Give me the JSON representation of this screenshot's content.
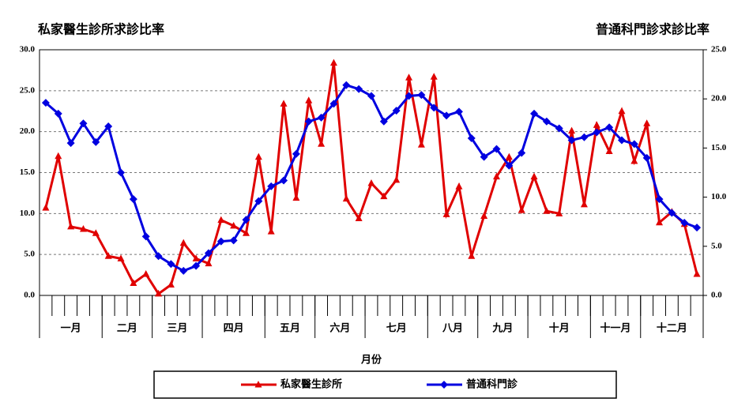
{
  "chart_data": {
    "type": "line",
    "title": "私家醫生診所求診比率",
    "title_right": "普通科門診求診比率",
    "x_label": "月份",
    "groups": [
      {
        "label": "一月",
        "span": 5
      },
      {
        "label": "二月",
        "span": 4
      },
      {
        "label": "三月",
        "span": 4
      },
      {
        "label": "四月",
        "span": 5
      },
      {
        "label": "五月",
        "span": 4
      },
      {
        "label": "六月",
        "span": 4
      },
      {
        "label": "七月",
        "span": 5
      },
      {
        "label": "八月",
        "span": 4
      },
      {
        "label": "九月",
        "span": 4
      },
      {
        "label": "十月",
        "span": 5
      },
      {
        "label": "十一月",
        "span": 4
      },
      {
        "label": "十二月",
        "span": 5
      }
    ],
    "ylim": [
      0,
      30
    ],
    "yticks": [
      {
        "value": 0,
        "label": "0.0"
      },
      {
        "value": 5,
        "label": "5.0"
      },
      {
        "value": 10,
        "label": "10.0"
      },
      {
        "value": 15,
        "label": "15.0"
      },
      {
        "value": 20,
        "label": "20.0"
      },
      {
        "value": 25,
        "label": "25.0"
      },
      {
        "value": 30,
        "label": "30.0"
      }
    ],
    "y2lim": [
      0,
      25
    ],
    "y2ticks": [
      {
        "value": 0,
        "label": "0.0"
      },
      {
        "value": 5,
        "label": "5.0"
      },
      {
        "value": 10,
        "label": "10.0"
      },
      {
        "value": 15,
        "label": "15.0"
      },
      {
        "value": 20,
        "label": "20.0"
      },
      {
        "value": 25,
        "label": "25.0"
      }
    ],
    "grid": true,
    "series": [
      {
        "name": "私家醫生診所",
        "color": "#e00000",
        "marker": "triangle",
        "axis": "y",
        "values": [
          10.7,
          17.0,
          8.4,
          8.1,
          7.6,
          4.8,
          4.5,
          1.5,
          2.6,
          0.2,
          1.3,
          6.4,
          4.5,
          3.9,
          9.2,
          8.5,
          7.6,
          16.9,
          7.8,
          23.4,
          11.9,
          23.8,
          18.5,
          28.4,
          11.8,
          9.4,
          13.7,
          12.1,
          14.1,
          26.6,
          18.4,
          26.7,
          9.9,
          13.3,
          4.8,
          9.7,
          14.5,
          16.9,
          10.4,
          14.5,
          10.3,
          10.0,
          20.1,
          11.1,
          20.8,
          17.6,
          22.5,
          16.4,
          21.0,
          8.9,
          10.2,
          8.7,
          2.6
        ]
      },
      {
        "name": "普通科門診",
        "color": "#0000e0",
        "marker": "diamond",
        "axis": "y2",
        "values": [
          19.6,
          18.5,
          15.5,
          17.5,
          15.6,
          17.2,
          12.5,
          9.8,
          6.0,
          4.0,
          3.2,
          2.5,
          3.0,
          4.3,
          5.5,
          5.6,
          7.7,
          9.6,
          11.1,
          11.7,
          14.4,
          17.7,
          18.1,
          19.5,
          21.4,
          21.0,
          20.3,
          17.7,
          18.8,
          20.3,
          20.4,
          19.1,
          18.3,
          18.7,
          16.0,
          14.1,
          14.9,
          13.2,
          14.5,
          18.5,
          17.7,
          17.0,
          15.8,
          16.1,
          16.6,
          17.1,
          15.8,
          15.4,
          14.0,
          9.8,
          8.4,
          7.4,
          6.9
        ]
      }
    ]
  }
}
